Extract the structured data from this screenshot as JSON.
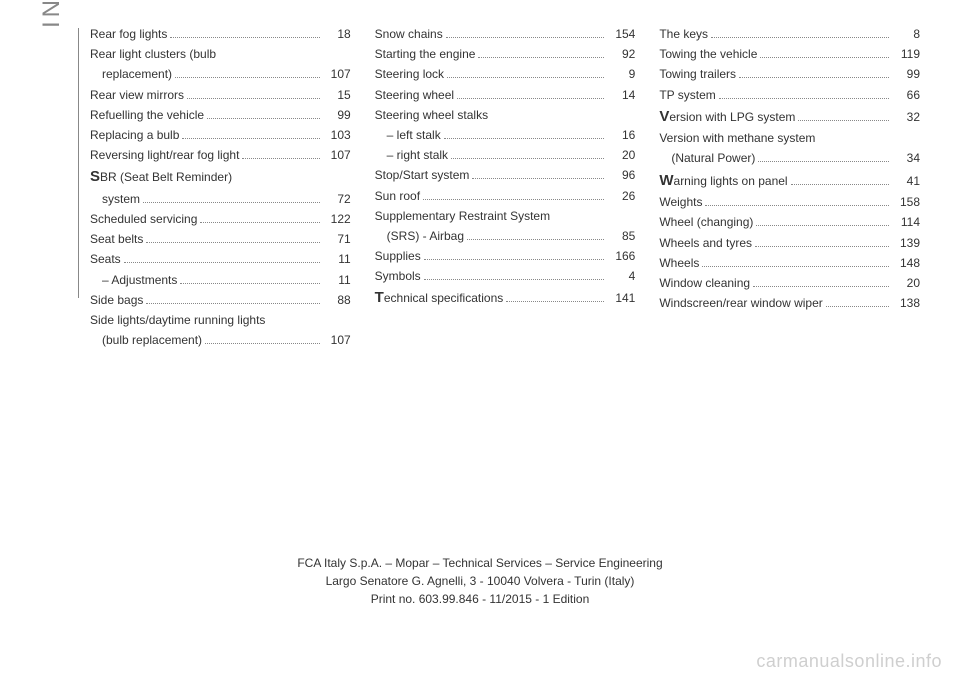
{
  "sideLabel": "INDEX",
  "columns": [
    [
      {
        "label": "Rear fog lights",
        "page": "18"
      },
      {
        "label": "Rear light clusters (bulb",
        "noPage": true
      },
      {
        "label": "replacement)",
        "page": "107",
        "cont": true
      },
      {
        "label": "Rear view mirrors",
        "page": "15"
      },
      {
        "label": "Refuelling the vehicle",
        "page": "99"
      },
      {
        "label": "Replacing a bulb",
        "page": "103"
      },
      {
        "label": "Reversing light/rear fog light",
        "page": "107"
      },
      {
        "letter": "S",
        "label": "BR (Seat Belt Reminder)",
        "noPage": true
      },
      {
        "label": "system",
        "page": "72",
        "cont": true
      },
      {
        "label": "Scheduled servicing",
        "page": "122"
      },
      {
        "label": "Seat belts",
        "page": "71"
      },
      {
        "label": "Seats",
        "page": "11"
      },
      {
        "label": "– Adjustments",
        "page": "11",
        "sub": true
      },
      {
        "label": "Side bags",
        "page": "88"
      },
      {
        "label": "Side lights/daytime running lights",
        "noPage": true
      },
      {
        "label": "(bulb replacement)",
        "page": "107",
        "cont": true
      }
    ],
    [
      {
        "label": "Snow chains",
        "page": "154"
      },
      {
        "label": "Starting the engine",
        "page": "92"
      },
      {
        "label": "Steering lock",
        "page": "9"
      },
      {
        "label": "Steering wheel",
        "page": "14"
      },
      {
        "label": "Steering wheel stalks",
        "noPage": true
      },
      {
        "label": "– left stalk",
        "page": "16",
        "sub": true
      },
      {
        "label": "– right stalk",
        "page": "20",
        "sub": true
      },
      {
        "label": "Stop/Start system",
        "page": "96"
      },
      {
        "label": "Sun roof",
        "page": "26"
      },
      {
        "label": "Supplementary Restraint System",
        "noPage": true
      },
      {
        "label": "(SRS) - Airbag",
        "page": "85",
        "cont": true
      },
      {
        "label": "Supplies",
        "page": "166"
      },
      {
        "label": "Symbols",
        "page": "4"
      },
      {
        "letter": "T",
        "label": "echnical specifications",
        "page": "141"
      }
    ],
    [
      {
        "label": "The keys",
        "page": "8"
      },
      {
        "label": "Towing the vehicle",
        "page": "119"
      },
      {
        "label": "Towing trailers",
        "page": "99"
      },
      {
        "label": "TP system",
        "page": "66"
      },
      {
        "letter": "V",
        "label": "ersion with LPG system",
        "page": "32"
      },
      {
        "label": "Version with methane system",
        "noPage": true
      },
      {
        "label": "(Natural Power)",
        "page": "34",
        "cont": true
      },
      {
        "letter": "W",
        "label": "arning lights on panel",
        "page": "41"
      },
      {
        "label": "Weights",
        "page": "158"
      },
      {
        "label": "Wheel (changing)",
        "page": "114"
      },
      {
        "label": "Wheels and tyres",
        "page": "139"
      },
      {
        "label": "Wheels",
        "page": "148"
      },
      {
        "label": "Window cleaning",
        "page": "20"
      },
      {
        "label": "Windscreen/rear window wiper",
        "page": "138"
      }
    ]
  ],
  "footer": {
    "line1": "FCA Italy S.p.A. – Mopar – Technical Services – Service Engineering",
    "line2": "Largo Senatore G. Agnelli, 3 - 10040 Volvera - Turin (Italy)",
    "line3": "Print no. 603.99.846 - 11/2015 - 1  Edition"
  },
  "watermark": "carmanualsonline.info"
}
